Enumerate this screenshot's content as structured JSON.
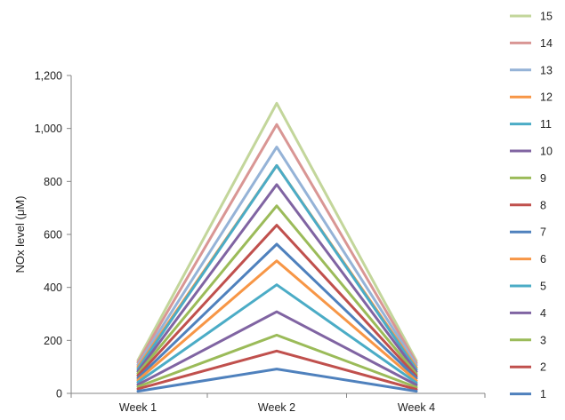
{
  "chart_data": {
    "type": "line",
    "categories": [
      "Week 1",
      "Week 2",
      "Week 4"
    ],
    "ylabel": "NOx level (μM)",
    "xlabel": "",
    "ylim": [
      0,
      1200
    ],
    "yticks": [
      0,
      200,
      400,
      600,
      800,
      1000,
      1200
    ],
    "ytick_labels": [
      "0",
      "200",
      "400",
      "600",
      "800",
      "1,000",
      "1,200"
    ],
    "grid": false,
    "legend_position": "right",
    "series": [
      {
        "name": "1",
        "color": "#4F81BD",
        "values": [
          8,
          92,
          8
        ]
      },
      {
        "name": "2",
        "color": "#C0504D",
        "values": [
          17,
          160,
          15
        ]
      },
      {
        "name": "3",
        "color": "#9BBB59",
        "values": [
          25,
          220,
          23
        ]
      },
      {
        "name": "4",
        "color": "#8064A2",
        "values": [
          33,
          308,
          32
        ]
      },
      {
        "name": "5",
        "color": "#4BACC6",
        "values": [
          42,
          410,
          40
        ]
      },
      {
        "name": "6",
        "color": "#F79646",
        "values": [
          50,
          500,
          48
        ]
      },
      {
        "name": "7",
        "color": "#4F81BD",
        "values": [
          58,
          563,
          57
        ]
      },
      {
        "name": "8",
        "color": "#C0504D",
        "values": [
          67,
          635,
          65
        ]
      },
      {
        "name": "9",
        "color": "#9BBB59",
        "values": [
          75,
          708,
          73
        ]
      },
      {
        "name": "10",
        "color": "#8064A2",
        "values": [
          83,
          788,
          82
        ]
      },
      {
        "name": "11",
        "color": "#4BACC6",
        "values": [
          92,
          860,
          90
        ]
      },
      {
        "name": "12",
        "color": "#F79646",
        "values": [
          100,
          860,
          98
        ]
      },
      {
        "name": "13",
        "color": "#95B3D7",
        "values": [
          108,
          930,
          107
        ]
      },
      {
        "name": "14",
        "color": "#D99694",
        "values": [
          117,
          1015,
          115
        ]
      },
      {
        "name": "15",
        "color": "#C3D69B",
        "values": [
          125,
          1095,
          123
        ]
      }
    ]
  }
}
